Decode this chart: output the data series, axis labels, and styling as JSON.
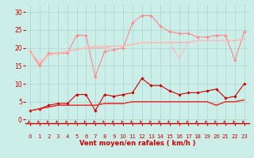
{
  "bg_color": "#cceee8",
  "grid_color": "#aad4cc",
  "xlabel": "Vent moyen/en rafales ( km/h )",
  "xlabel_color": "#cc0000",
  "tick_color": "#cc0000",
  "x_ticks": [
    0,
    1,
    2,
    3,
    4,
    5,
    6,
    7,
    8,
    9,
    10,
    11,
    12,
    13,
    14,
    15,
    16,
    17,
    18,
    19,
    20,
    21,
    22,
    23
  ],
  "ylim": [
    -1,
    32
  ],
  "yticks": [
    0,
    5,
    10,
    15,
    20,
    25,
    30
  ],
  "line_series": [
    {
      "y": [
        19,
        15,
        18.5,
        18.5,
        18.5,
        23.5,
        23.5,
        12,
        19,
        19.5,
        20,
        27,
        29,
        29,
        26,
        24.5,
        24,
        24,
        23,
        23,
        23.5,
        23.5,
        16.5,
        24.5
      ],
      "color": "#ff8888",
      "lw": 0.8,
      "marker": "D",
      "ms": 1.8
    },
    {
      "y": [
        19,
        15.5,
        18,
        18.5,
        19,
        19.5,
        20,
        20,
        20,
        20.5,
        20.5,
        21,
        21.5,
        21.5,
        21.5,
        21.5,
        21.5,
        21.5,
        22,
        22,
        22,
        22,
        22,
        22.5
      ],
      "color": "#ffaaaa",
      "lw": 0.9,
      "marker": null,
      "ms": 0
    },
    {
      "y": [
        19,
        16,
        18,
        18.5,
        19,
        19.5,
        20,
        20.5,
        20.5,
        20.5,
        20.5,
        21,
        21.5,
        21.5,
        21.5,
        21.5,
        17,
        21.5,
        22,
        22,
        22,
        22,
        22,
        22.5
      ],
      "color": "#ffbbbb",
      "lw": 0.9,
      "marker": null,
      "ms": 0
    },
    {
      "y": [
        2.5,
        3,
        4,
        4.5,
        4.5,
        7,
        7,
        2.5,
        7,
        6.5,
        7,
        7.5,
        11.5,
        9.5,
        9.5,
        8,
        7,
        7.5,
        7.5,
        8,
        8.5,
        6,
        6.5,
        10
      ],
      "color": "#cc0000",
      "lw": 0.8,
      "marker": "D",
      "ms": 1.8
    },
    {
      "y": [
        2.5,
        3,
        3.5,
        4,
        4,
        4,
        4,
        4,
        4.5,
        4.5,
        4.5,
        5,
        5,
        5,
        5,
        5,
        5,
        5,
        5,
        5,
        4,
        5,
        5,
        5.5
      ],
      "color": "#dd2222",
      "lw": 0.9,
      "marker": null,
      "ms": 0
    },
    {
      "y": [
        2.5,
        3,
        3.5,
        4,
        4,
        4,
        4,
        4,
        4.5,
        4.5,
        4.5,
        5,
        5,
        5,
        5,
        5,
        5,
        5,
        5,
        5,
        4,
        5,
        5,
        5.5
      ],
      "color": "#ee3333",
      "lw": 0.7,
      "marker": null,
      "ms": 0
    }
  ]
}
